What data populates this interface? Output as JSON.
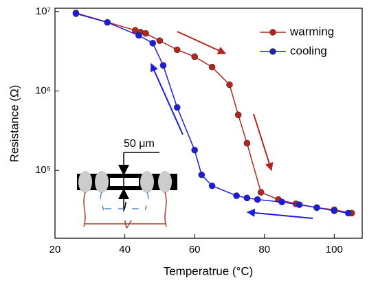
{
  "chart_data": {
    "type": "line",
    "x_label": "Temperatrue (°C)",
    "y_label": "Resistance (Ω)",
    "xlim": [
      20,
      108
    ],
    "xticks": [
      20,
      40,
      60,
      80,
      100
    ],
    "ylim": [
      14000,
      11000000
    ],
    "yticks": [
      {
        "value": 100000,
        "label": "10⁵"
      },
      {
        "value": 1000000,
        "label": "10⁶"
      },
      {
        "value": 10000000,
        "label": "10⁷"
      }
    ],
    "log_y": true,
    "legend": "upper right",
    "series": [
      {
        "name": "warming",
        "color": "#b3261e",
        "x": [
          26,
          43,
          44.5,
          46,
          50,
          55,
          60,
          65,
          70,
          72.5,
          75,
          79,
          84,
          89,
          95,
          100,
          105
        ],
        "values": [
          9600000,
          5800000,
          5500000,
          5300000,
          4300000,
          3300000,
          2700000,
          2000000,
          1200000,
          500000,
          220000,
          53000,
          43000,
          38000,
          34000,
          32000,
          29000
        ]
      },
      {
        "name": "cooling",
        "color": "#1c1ce0",
        "x": [
          26,
          35,
          44,
          48,
          51,
          55,
          60,
          62,
          65,
          72,
          75,
          78,
          85,
          90,
          95,
          100,
          104
        ],
        "values": [
          9400000,
          7300000,
          5000000,
          4000000,
          2100000,
          620000,
          180000,
          88000,
          64000,
          48000,
          45000,
          43000,
          40000,
          37000,
          34000,
          31000,
          29000
        ]
      }
    ],
    "annotations": [
      "50 μm",
      "I",
      "V"
    ]
  }
}
